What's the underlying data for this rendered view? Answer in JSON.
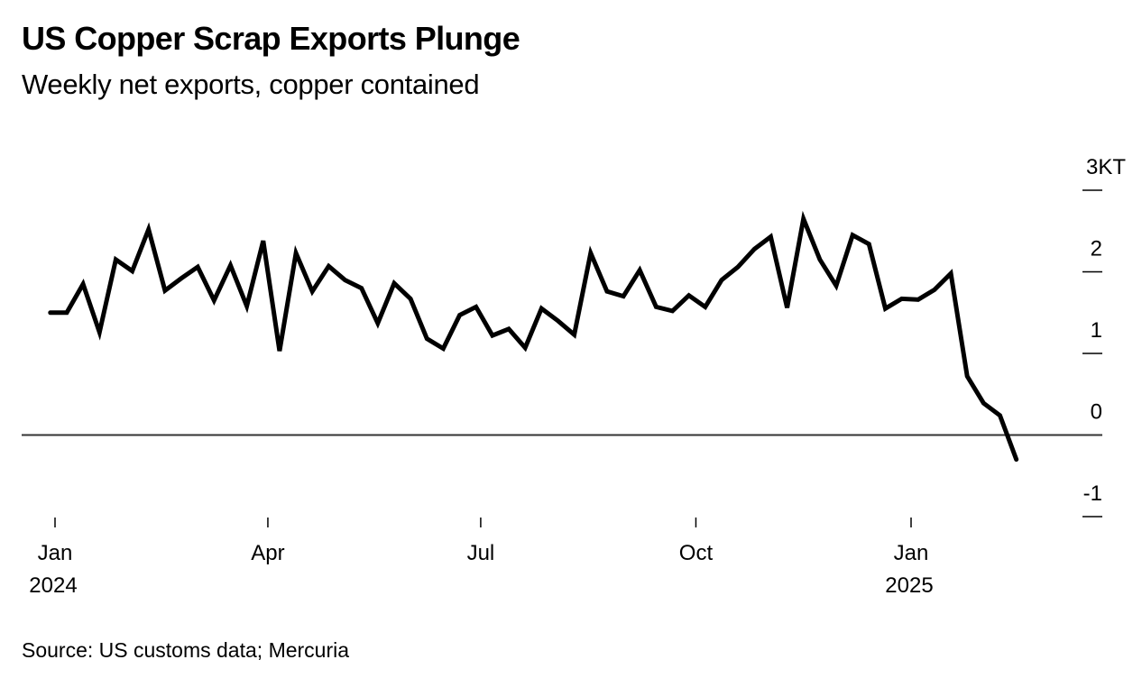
{
  "chart_data": {
    "type": "line",
    "title": "US Copper Scrap Exports Plunge",
    "subtitle": "Weekly net exports, copper contained",
    "source": "Source: US customs data; Mercuria",
    "ylabel": "",
    "xlabel": "",
    "y_unit_label": "3KT",
    "ylim": [
      -1,
      3
    ],
    "yticks": [
      {
        "value": 3,
        "label": "3KT"
      },
      {
        "value": 2,
        "label": "2"
      },
      {
        "value": 1,
        "label": "1"
      },
      {
        "value": 0,
        "label": "0"
      },
      {
        "value": -1,
        "label": "-1"
      }
    ],
    "xticks": [
      {
        "date": "2024-01-01",
        "label": "Jan",
        "sublabel": "2024"
      },
      {
        "date": "2024-04-01",
        "label": "Apr",
        "sublabel": ""
      },
      {
        "date": "2024-07-01",
        "label": "Jul",
        "sublabel": ""
      },
      {
        "date": "2024-10-01",
        "label": "Oct",
        "sublabel": ""
      },
      {
        "date": "2025-01-01",
        "label": "Jan",
        "sublabel": "2025"
      }
    ],
    "xlim": [
      "2023-12-20",
      "2025-03-28"
    ],
    "grid": false,
    "series": [
      {
        "name": "Weekly net exports",
        "color": "#000000",
        "start_date": "2023-12-30",
        "interval_days": 7,
        "values": [
          1.5,
          1.5,
          1.85,
          1.26,
          2.15,
          2.01,
          2.52,
          1.77,
          1.92,
          2.06,
          1.65,
          2.08,
          1.58,
          2.38,
          1.03,
          2.23,
          1.76,
          2.07,
          1.9,
          1.8,
          1.37,
          1.86,
          1.67,
          1.18,
          1.06,
          1.47,
          1.57,
          1.22,
          1.3,
          1.07,
          1.55,
          1.4,
          1.23,
          2.23,
          1.76,
          1.7,
          2.02,
          1.57,
          1.52,
          1.71,
          1.57,
          1.9,
          2.06,
          2.28,
          2.43,
          1.56,
          2.65,
          2.15,
          1.83,
          2.45,
          2.34,
          1.55,
          1.67,
          1.66,
          1.78,
          1.98,
          0.72,
          0.39,
          0.24,
          -0.3
        ]
      }
    ]
  }
}
